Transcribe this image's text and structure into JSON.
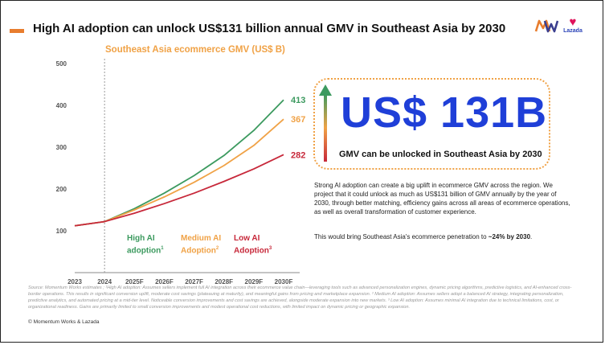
{
  "header": {
    "title": "High AI adoption can unlock US$131 billion annual GMV in Southeast Asia by 2030",
    "accent_color": "#e87d2e"
  },
  "logos": {
    "mw": "mw-logo-icon",
    "lazada_heart": "♥",
    "lazada_label": "Lazada"
  },
  "chart_data": {
    "type": "line",
    "title": "Southeast Asia ecommerce GMV (US$ B)",
    "xlabel": "",
    "ylabel": "",
    "categories": [
      "2023",
      "2024",
      "2025F",
      "2026F",
      "2027F",
      "2028F",
      "2029F",
      "2030F"
    ],
    "ylim": [
      0,
      500
    ],
    "yticks": [
      100,
      200,
      300,
      400,
      500
    ],
    "grid": false,
    "divider_after": "2024",
    "series": [
      {
        "name": "High AI adoption",
        "color": "#3c9a5f",
        "values": [
          112,
          122,
          153,
          190,
          232,
          280,
          340,
          413
        ],
        "end_label": "413",
        "footnote": "1"
      },
      {
        "name": "Medium AI Adoption",
        "color": "#f0a246",
        "values": [
          112,
          122,
          150,
          181,
          216,
          256,
          304,
          367
        ],
        "end_label": "367",
        "footnote": "2"
      },
      {
        "name": "Low AI Adoption",
        "color": "#c7283a",
        "values": [
          112,
          122,
          142,
          165,
          190,
          218,
          248,
          282
        ],
        "end_label": "282",
        "footnote": "3"
      }
    ]
  },
  "legend": {
    "high_line1": "High AI",
    "high_line2": "adoption",
    "high_sup": "1",
    "medium_line1": "Medium AI",
    "medium_line2": "Adoption",
    "medium_sup": "2",
    "low_line1": "Low AI",
    "low_line2": "Adoption",
    "low_sup": "3"
  },
  "callout": {
    "big_value": "US$ 131B",
    "subtitle": "GMV can be unlocked in Southeast Asia by 2030",
    "value_color": "#1f3fd8",
    "border_color": "#f0a246"
  },
  "body": {
    "paragraph1": "Strong AI adoption can create a big uplift in ecommerce GMV across the region. We project that it could unlock as much as US$131 billion of GMV annually by the year of 2030, through better matching, efficiency gains across all areas of ecommerce operations, as well as overall transformation of customer experience.",
    "paragraph2_pre": "This would bring Southeast Asia's ecommerce penetration to ",
    "paragraph2_bold": "~24% by 2030",
    "paragraph2_post": "."
  },
  "footer": {
    "source": "Source: Momentum Works estimates ; ¹High AI adoption: Assumes sellers implement full AI integration across their ecommerce value chain—leveraging tools such as advanced personalization engines, dynamic pricing algorithms, predictive logistics, and AI-enhanced cross-border operations. This results in significant conversion uplift, moderate cost savings (plateauing at maturity), and meaningful gains from pricing and marketplace expansion. ² Medium AI adoption: Assumes sellers adopt a balanced AI strategy, integrating personalization, predictive analytics, and automated pricing at a mid-tier level. Noticeable conversion improvements and cost savings are achieved, alongside moderate expansion into new markets. ³ Low AI adoption: Assumes minimal AI integration due to technical limitations, cost, or organizational readiness. Gains are primarily limited to small conversion improvements and modest operational cost reductions, with limited impact on dynamic pricing or geographic expansion.",
    "copyright": "© Momentum Works & Lazada"
  }
}
